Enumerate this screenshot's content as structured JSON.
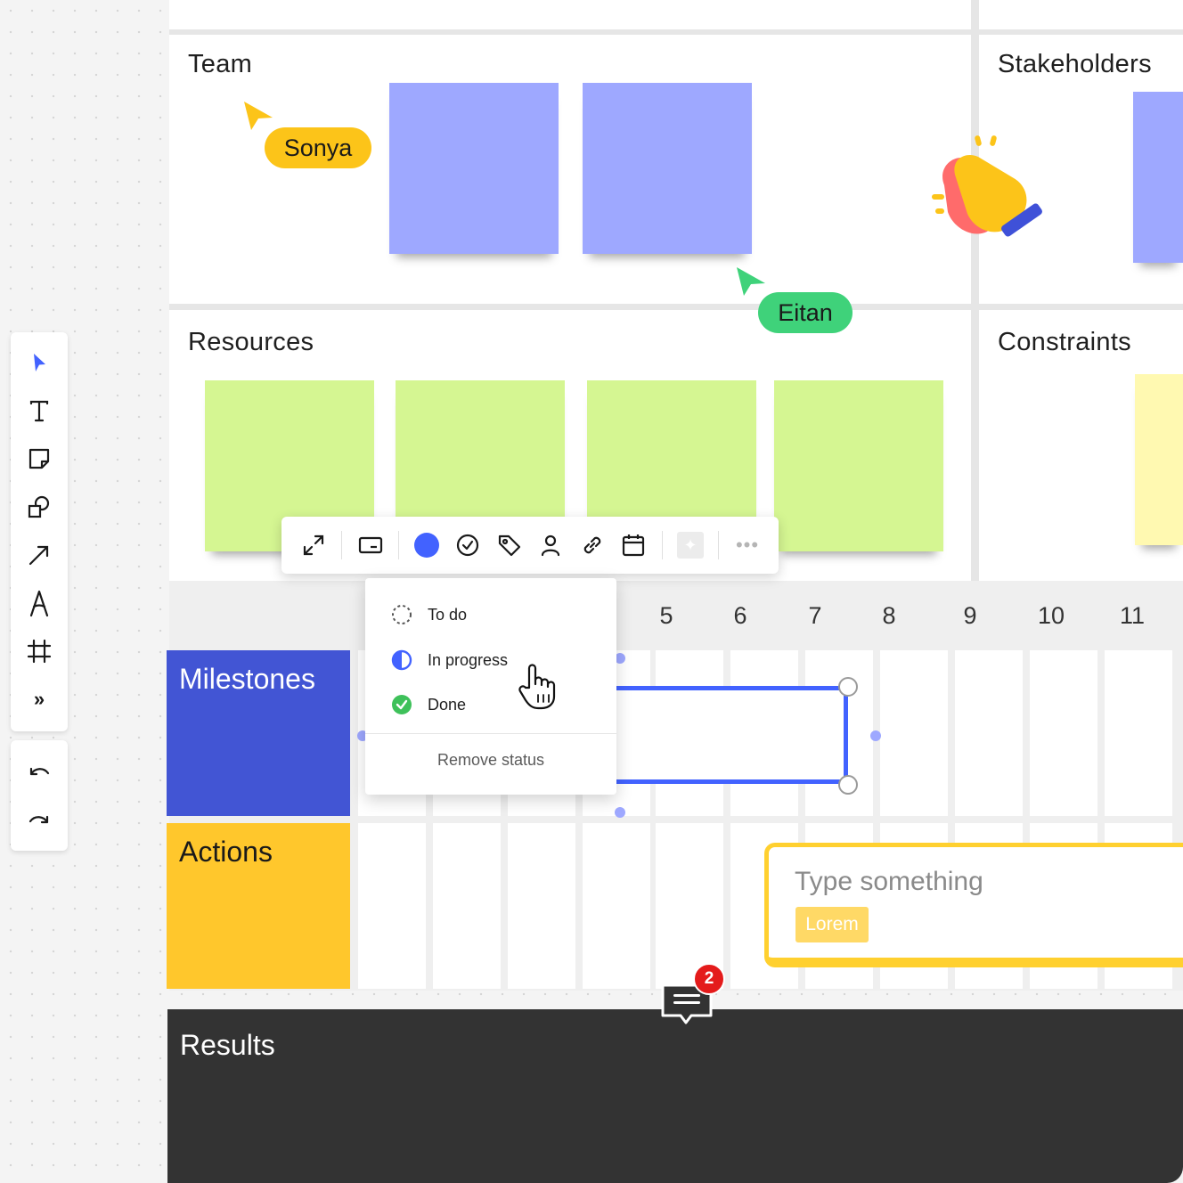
{
  "frames": {
    "team": "Team",
    "stakeholders": "Stakeholders",
    "resources": "Resources",
    "constraints": "Constraints"
  },
  "cursors": [
    {
      "name": "Sonya",
      "color": "#fcc419"
    },
    {
      "name": "Eitan",
      "color": "#3fd27a"
    }
  ],
  "context_toolbar": {
    "buttons": [
      "expand-icon",
      "card-icon",
      "color-swatch",
      "check-circle-icon",
      "tag-icon",
      "person-icon",
      "link-icon",
      "calendar-icon",
      "ai-sparkle-icon",
      "more-icon"
    ],
    "swatch_color": "#4262ff"
  },
  "status_menu": {
    "items": [
      {
        "label": "To do",
        "icon": "dashed-circle-icon"
      },
      {
        "label": "In progress",
        "icon": "half-circle-icon"
      },
      {
        "label": "Done",
        "icon": "check-done-icon"
      }
    ],
    "remove": "Remove status"
  },
  "timeline": {
    "columns": [
      "5",
      "6",
      "7",
      "8",
      "9",
      "10",
      "11"
    ],
    "rows": [
      {
        "label": "Milestones",
        "color": "#4255d4"
      },
      {
        "label": "Actions",
        "color": "#ffc72c"
      }
    ]
  },
  "card": {
    "placeholder": "Type something",
    "tag": "Lorem"
  },
  "comments": {
    "count": "2"
  },
  "results": {
    "label": "Results"
  },
  "left_toolbar": [
    "select-icon",
    "text-icon",
    "sticky-note-icon",
    "shapes-icon",
    "arrow-icon",
    "pen-icon",
    "frame-icon",
    "more-tools-icon",
    "undo-icon",
    "redo-icon"
  ]
}
